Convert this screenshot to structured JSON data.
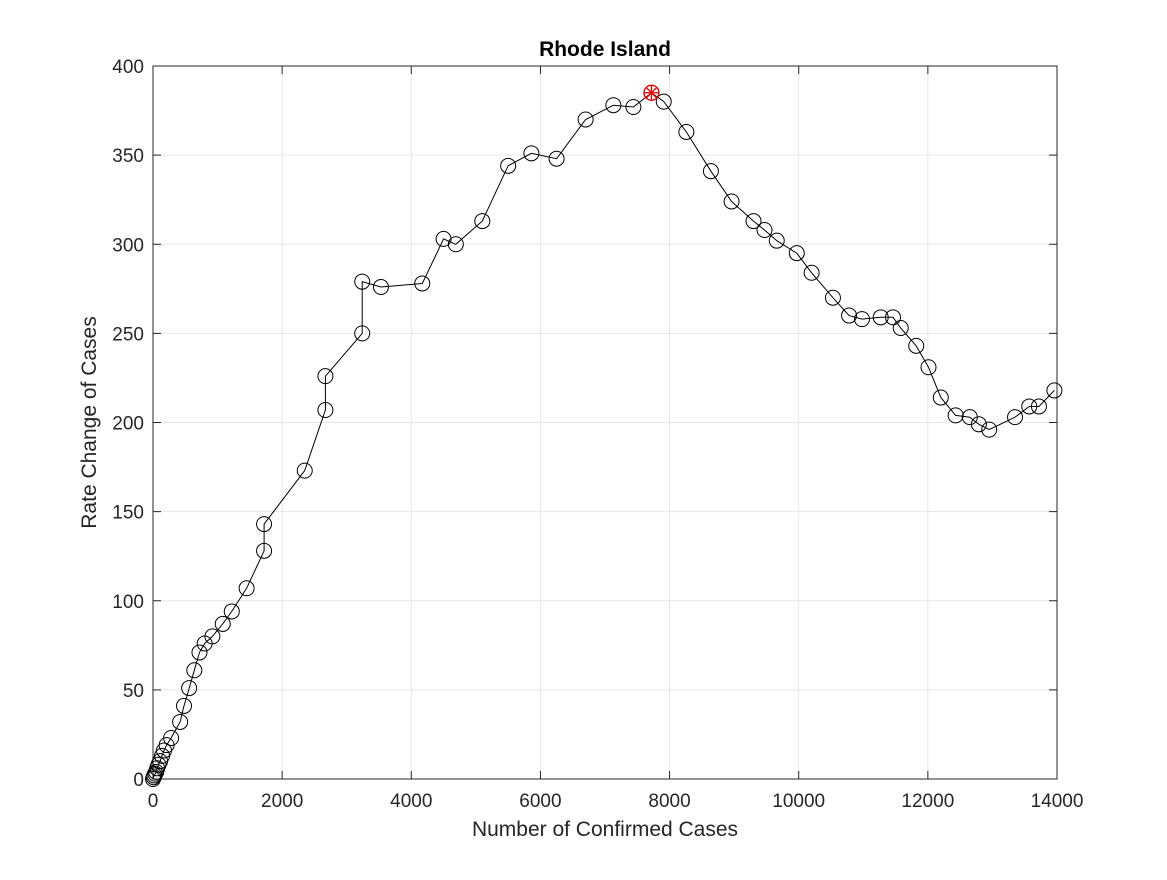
{
  "chart_data": {
    "type": "line",
    "title": "Rhode Island",
    "xlabel": "Number of Confirmed Cases",
    "ylabel": "Rate Change of Cases",
    "xlim": [
      0,
      14000
    ],
    "ylim": [
      0,
      400
    ],
    "xticks": [
      0,
      2000,
      4000,
      6000,
      8000,
      10000,
      12000,
      14000
    ],
    "yticks": [
      0,
      50,
      100,
      150,
      200,
      250,
      300,
      350,
      400
    ],
    "grid": true,
    "legend": "none",
    "series": [
      {
        "marker": "circle",
        "color": "#000000",
        "x": [
          0,
          10,
          20,
          35,
          50,
          65,
          85,
          110,
          140,
          170,
          210,
          280,
          420,
          480,
          560,
          640,
          720,
          800,
          920,
          1080,
          1220,
          1450,
          1720,
          1720,
          2350,
          2670,
          2670,
          3240,
          3240,
          3530,
          4170,
          4500,
          4690,
          5100,
          5500,
          5860,
          6250,
          6700,
          7130,
          7440,
          7720,
          7910,
          8260,
          8640,
          8960,
          9300,
          9470,
          9660,
          9970,
          10200,
          10530,
          10780,
          10980,
          11270,
          11460,
          11580,
          11820,
          12010,
          12200,
          12430,
          12650,
          12790,
          12950,
          13350,
          13570,
          13720,
          13960
        ],
        "y": [
          0,
          1,
          2,
          3,
          4,
          6,
          8,
          10,
          13,
          16,
          19,
          23,
          32,
          41,
          51,
          61,
          71,
          76,
          80,
          87,
          94,
          107,
          128,
          143,
          173,
          207,
          226,
          250,
          279,
          276,
          278,
          303,
          300,
          313,
          344,
          351,
          348,
          370,
          378,
          377,
          385,
          380,
          363,
          341,
          324,
          313,
          308,
          302,
          295,
          284,
          270,
          260,
          258,
          259,
          259,
          253,
          243,
          231,
          214,
          204,
          203,
          199,
          196,
          203,
          209,
          209,
          218
        ]
      }
    ],
    "highlight": {
      "marker": "asterisk",
      "color": "#e00000",
      "x": 7720,
      "y": 385
    }
  }
}
